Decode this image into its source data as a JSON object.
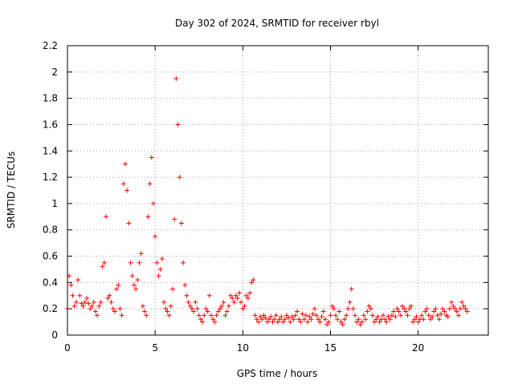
{
  "colors": {
    "series": "#ff0000",
    "axis": "#000000",
    "grid": "#a0a0a0",
    "background": "#ffffff"
  },
  "chart_data": {
    "type": "scatter",
    "title": "Day 302 of 2024, SRMTID for receiver rbyl",
    "xlabel": "GPS time / hours",
    "ylabel": "SRMTID / TECUs",
    "xlim": [
      0,
      24
    ],
    "ylim": [
      0,
      2.2
    ],
    "xticks": [
      0,
      5,
      10,
      15,
      20
    ],
    "xtick_labels": [
      "0",
      "5",
      "10",
      "15",
      "20"
    ],
    "yticks": [
      0,
      0.2,
      0.4,
      0.6,
      0.8,
      1,
      1.2,
      1.4,
      1.6,
      1.8,
      2,
      2.2
    ],
    "ytick_labels": [
      "0",
      "0.2",
      "0.4",
      "0.6",
      "0.8",
      "1",
      "1.2",
      "1.4",
      "1.6",
      "1.8",
      "2",
      "2.2"
    ],
    "grid": true,
    "marker": "plus",
    "series": [
      {
        "name": "SRMTID",
        "x": [
          0.0,
          0.1,
          0.2,
          0.3,
          0.4,
          0.5,
          0.6,
          0.7,
          0.8,
          0.9,
          1.0,
          1.1,
          1.2,
          1.3,
          1.4,
          1.5,
          1.6,
          1.7,
          1.8,
          1.9,
          2.0,
          2.1,
          2.2,
          2.3,
          2.4,
          2.5,
          2.6,
          2.7,
          2.8,
          2.9,
          3.0,
          3.1,
          3.2,
          3.3,
          3.4,
          3.5,
          3.6,
          3.7,
          3.8,
          3.9,
          4.0,
          4.1,
          4.2,
          4.3,
          4.4,
          4.5,
          4.6,
          4.7,
          4.8,
          4.9,
          5.0,
          5.1,
          5.2,
          5.3,
          5.4,
          5.5,
          5.6,
          5.7,
          5.8,
          5.9,
          6.0,
          6.1,
          6.2,
          6.3,
          6.4,
          6.5,
          6.6,
          6.7,
          6.8,
          6.9,
          7.0,
          7.1,
          7.2,
          7.3,
          7.4,
          7.5,
          7.6,
          7.7,
          7.8,
          7.9,
          8.0,
          8.1,
          8.2,
          8.3,
          8.4,
          8.5,
          8.6,
          8.7,
          8.8,
          8.9,
          9.0,
          9.1,
          9.2,
          9.3,
          9.4,
          9.5,
          9.6,
          9.7,
          9.8,
          9.9,
          10.0,
          10.1,
          10.2,
          10.3,
          10.4,
          10.5,
          10.6,
          10.7,
          10.8,
          10.9,
          11.0,
          11.1,
          11.2,
          11.3,
          11.4,
          11.5,
          11.6,
          11.7,
          11.8,
          11.9,
          12.0,
          12.1,
          12.2,
          12.3,
          12.4,
          12.5,
          12.6,
          12.7,
          12.8,
          12.9,
          13.0,
          13.1,
          13.2,
          13.3,
          13.4,
          13.5,
          13.6,
          13.7,
          13.8,
          13.9,
          14.0,
          14.1,
          14.2,
          14.3,
          14.4,
          14.5,
          14.6,
          14.7,
          14.8,
          14.9,
          15.0,
          15.1,
          15.2,
          15.3,
          15.4,
          15.5,
          15.6,
          15.7,
          15.8,
          15.9,
          16.0,
          16.1,
          16.2,
          16.3,
          16.4,
          16.5,
          16.6,
          16.7,
          16.8,
          16.9,
          17.0,
          17.1,
          17.2,
          17.3,
          17.4,
          17.5,
          17.6,
          17.7,
          17.8,
          17.9,
          18.0,
          18.1,
          18.2,
          18.3,
          18.4,
          18.5,
          18.6,
          18.7,
          18.8,
          18.9,
          19.0,
          19.1,
          19.2,
          19.3,
          19.4,
          19.5,
          19.6,
          19.7,
          19.8,
          19.9,
          20.0,
          20.1,
          20.2,
          20.3,
          20.4,
          20.5,
          20.6,
          20.7,
          20.8,
          20.9,
          21.0,
          21.1,
          21.2,
          21.3,
          21.4,
          21.5,
          21.6,
          21.7,
          21.8,
          21.9,
          22.0,
          22.1,
          22.2,
          22.3,
          22.4,
          22.5,
          22.6,
          22.7,
          22.8
        ],
        "y": [
          0.2,
          0.45,
          0.38,
          0.3,
          0.22,
          0.25,
          0.42,
          0.3,
          0.24,
          0.22,
          0.25,
          0.28,
          0.24,
          0.2,
          0.22,
          0.25,
          0.18,
          0.15,
          0.22,
          0.25,
          0.52,
          0.55,
          0.9,
          0.28,
          0.3,
          0.25,
          0.2,
          0.18,
          0.35,
          0.38,
          0.2,
          0.15,
          1.15,
          1.3,
          1.1,
          0.85,
          0.55,
          0.45,
          0.38,
          0.35,
          0.42,
          0.55,
          0.62,
          0.22,
          0.18,
          0.15,
          0.9,
          1.15,
          1.35,
          1.0,
          0.75,
          0.55,
          0.45,
          0.5,
          0.58,
          0.25,
          0.2,
          0.18,
          0.15,
          0.22,
          0.35,
          0.88,
          1.95,
          1.6,
          1.2,
          0.85,
          0.55,
          0.38,
          0.3,
          0.25,
          0.22,
          0.2,
          0.18,
          0.25,
          0.2,
          0.15,
          0.12,
          0.1,
          0.15,
          0.2,
          0.18,
          0.3,
          0.15,
          0.12,
          0.1,
          0.15,
          0.18,
          0.2,
          0.22,
          0.25,
          0.15,
          0.18,
          0.22,
          0.3,
          0.28,
          0.25,
          0.3,
          0.28,
          0.32,
          0.25,
          0.2,
          0.22,
          0.3,
          0.28,
          0.32,
          0.4,
          0.42,
          0.15,
          0.12,
          0.1,
          0.14,
          0.12,
          0.15,
          0.13,
          0.1,
          0.12,
          0.14,
          0.1,
          0.12,
          0.15,
          0.1,
          0.12,
          0.14,
          0.1,
          0.12,
          0.15,
          0.13,
          0.1,
          0.14,
          0.12,
          0.15,
          0.18,
          0.12,
          0.1,
          0.16,
          0.12,
          0.15,
          0.1,
          0.14,
          0.12,
          0.16,
          0.2,
          0.15,
          0.12,
          0.1,
          0.14,
          0.18,
          0.12,
          0.08,
          0.1,
          0.15,
          0.22,
          0.2,
          0.15,
          0.12,
          0.18,
          0.1,
          0.08,
          0.12,
          0.15,
          0.2,
          0.25,
          0.35,
          0.2,
          0.15,
          0.1,
          0.12,
          0.08,
          0.1,
          0.15,
          0.12,
          0.18,
          0.22,
          0.2,
          0.15,
          0.1,
          0.12,
          0.14,
          0.1,
          0.12,
          0.15,
          0.12,
          0.1,
          0.14,
          0.12,
          0.15,
          0.18,
          0.14,
          0.2,
          0.18,
          0.15,
          0.22,
          0.2,
          0.18,
          0.15,
          0.2,
          0.22,
          0.1,
          0.12,
          0.14,
          0.1,
          0.12,
          0.15,
          0.12,
          0.18,
          0.2,
          0.15,
          0.12,
          0.14,
          0.18,
          0.2,
          0.15,
          0.12,
          0.16,
          0.2,
          0.18,
          0.15,
          0.14,
          0.2,
          0.25,
          0.22,
          0.2,
          0.18,
          0.15,
          0.2,
          0.25,
          0.22,
          0.2,
          0.18
        ]
      }
    ]
  }
}
